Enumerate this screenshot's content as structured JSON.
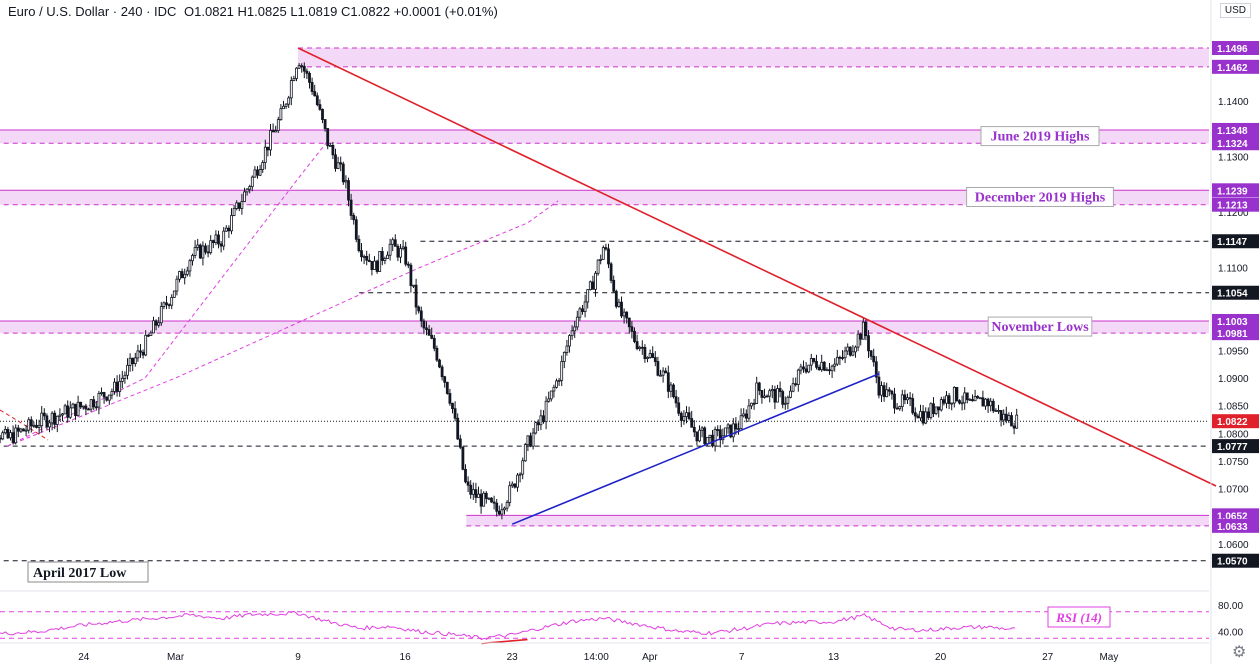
{
  "header": {
    "symbol": "Euro / U.S. Dollar",
    "interval": "240",
    "source": "IDC",
    "open": "O1.0821",
    "high": "H1.0825",
    "low": "L1.0819",
    "close": "C1.0822",
    "change": "+0.0001 (+0.01%)"
  },
  "currency_badge": "USD",
  "settings_icon": "gear-icon",
  "colors": {
    "zone_fill": "#f3d9f7",
    "zone_border": "#cc33cc",
    "resistance_line": "#e0202a",
    "support_line": "#1f22c8",
    "sma_line": "#e040e0",
    "candle": "#131722",
    "label_bg": "#9932cc",
    "rsi_line": "#e040e0"
  },
  "chart_data": [
    {
      "type": "candlestick",
      "title": "Euro / U.S. Dollar · 240 · IDC",
      "ylim": [
        1.055,
        1.152
      ],
      "x_ticks": [
        "24",
        "Mar",
        "9",
        "16",
        "23",
        "14:00",
        "Apr",
        "7",
        "13",
        "20",
        "27",
        "May"
      ],
      "y_ticks": [
        "1.1400",
        "1.1300",
        "1.1200",
        "1.1100",
        "1.0950",
        "1.0900",
        "1.0850",
        "1.0800",
        "1.0750",
        "1.0700",
        "1.0650",
        "1.0600"
      ],
      "grid": false,
      "price_labels": [
        {
          "value": 1.1496,
          "text": "1.1496",
          "style": "zone"
        },
        {
          "value": 1.1462,
          "text": "1.1462",
          "style": "zone"
        },
        {
          "value": 1.1348,
          "text": "1.1348",
          "style": "zone"
        },
        {
          "value": 1.1324,
          "text": "1.1324",
          "style": "zone"
        },
        {
          "value": 1.1239,
          "text": "1.1239",
          "style": "zone"
        },
        {
          "value": 1.1213,
          "text": "1.1213",
          "style": "zone"
        },
        {
          "value": 1.1147,
          "text": "1.1147",
          "style": "level"
        },
        {
          "value": 1.1054,
          "text": "1.1054",
          "style": "level"
        },
        {
          "value": 1.1003,
          "text": "1.1003",
          "style": "zone"
        },
        {
          "value": 1.0981,
          "text": "1.0981",
          "style": "zone"
        },
        {
          "value": 1.0822,
          "text": "1.0822",
          "style": "last"
        },
        {
          "value": 1.0777,
          "text": "1.0777",
          "style": "level"
        },
        {
          "value": 1.0652,
          "text": "1.0652",
          "style": "zone"
        },
        {
          "value": 1.0633,
          "text": "1.0633",
          "style": "zone"
        },
        {
          "value": 1.057,
          "text": "1.0570",
          "style": "level"
        }
      ],
      "zones": [
        {
          "from": 1.1462,
          "to": 1.1496,
          "x_start": "Mar 9",
          "label": ""
        },
        {
          "from": 1.1324,
          "to": 1.1348,
          "x_start": "Feb 17",
          "label": "June 2019 Highs"
        },
        {
          "from": 1.1213,
          "to": 1.1239,
          "x_start": "Feb 17",
          "label": "December 2019 Highs"
        },
        {
          "from": 1.0981,
          "to": 1.1003,
          "x_start": "Feb 17",
          "label": "November Lows"
        },
        {
          "from": 1.0633,
          "to": 1.0652,
          "x_start": "Mar 20",
          "label": ""
        }
      ],
      "levels": [
        {
          "value": 1.1147,
          "x_start": "Mar 17"
        },
        {
          "value": 1.1054,
          "x_start": "Mar 13"
        },
        {
          "value": 1.0777,
          "x_start": "Feb 17"
        },
        {
          "value": 1.057,
          "x_start": "Feb 17",
          "label": "April 2017 Low"
        }
      ],
      "trendlines": [
        {
          "name": "resistance",
          "color": "#e0202a",
          "points": [
            [
              "Mar 9",
              1.1496
            ],
            [
              "May 8",
              1.0705
            ]
          ]
        },
        {
          "name": "support",
          "color": "#1f22c8",
          "points": [
            [
              "Mar 23",
              1.0636
            ],
            [
              "Apr 16",
              1.0908
            ]
          ]
        }
      ],
      "dashed_curves": [
        {
          "name": "ma-short",
          "color": "#e040e0",
          "points": [
            [
              "Feb 19",
              1.0777
            ],
            [
              "Feb 28",
              1.09
            ],
            [
              "Mar 4",
              1.108
            ],
            [
              "Mar 9",
              1.126
            ],
            [
              "Mar 11",
              1.133
            ]
          ]
        },
        {
          "name": "ma-long",
          "color": "#e040e0",
          "points": [
            [
              "Feb 19",
              1.0777
            ],
            [
              "Mar 1",
              1.09
            ],
            [
              "Mar 9",
              1.1
            ],
            [
              "Mar 17",
              1.11
            ],
            [
              "Mar 24",
              1.118
            ],
            [
              "Mar 26",
              1.122
            ]
          ]
        }
      ],
      "close_path": [
        {
          "x": "Feb 17",
          "y": 1.083
        },
        {
          "x": "Feb 19",
          "y": 1.079
        },
        {
          "x": "Feb 21",
          "y": 1.082
        },
        {
          "x": "Feb 24",
          "y": 1.085
        },
        {
          "x": "Feb 26",
          "y": 1.088
        },
        {
          "x": "Feb 28",
          "y": 1.096
        },
        {
          "x": "Mar 2",
          "y": 1.112
        },
        {
          "x": "Mar 4",
          "y": 1.115
        },
        {
          "x": "Mar 6",
          "y": 1.126
        },
        {
          "x": "Mar 8",
          "y": 1.138
        },
        {
          "x": "Mar 9",
          "y": 1.148
        },
        {
          "x": "Mar 10",
          "y": 1.142
        },
        {
          "x": "Mar 11",
          "y": 1.132
        },
        {
          "x": "Mar 12",
          "y": 1.126
        },
        {
          "x": "Mar 13",
          "y": 1.114
        },
        {
          "x": "Mar 14",
          "y": 1.11
        },
        {
          "x": "Mar 15",
          "y": 1.114
        },
        {
          "x": "Mar 16",
          "y": 1.112
        },
        {
          "x": "Mar 17",
          "y": 1.1
        },
        {
          "x": "Mar 18",
          "y": 1.095
        },
        {
          "x": "Mar 19",
          "y": 1.086
        },
        {
          "x": "Mar 20",
          "y": 1.07
        },
        {
          "x": "Mar 21",
          "y": 1.068
        },
        {
          "x": "Mar 22",
          "y": 1.066
        },
        {
          "x": "Mar 23",
          "y": 1.07
        },
        {
          "x": "Mar 24",
          "y": 1.078
        },
        {
          "x": "Mar 25",
          "y": 1.083
        },
        {
          "x": "Mar 26",
          "y": 1.09
        },
        {
          "x": "Mar 27",
          "y": 1.1
        },
        {
          "x": "Mar 28",
          "y": 1.105
        },
        {
          "x": "Mar 29",
          "y": 1.114
        },
        {
          "x": "Mar 30",
          "y": 1.102
        },
        {
          "x": "Mar 31",
          "y": 1.097
        },
        {
          "x": "Apr 1",
          "y": 1.094
        },
        {
          "x": "Apr 2",
          "y": 1.09
        },
        {
          "x": "Apr 3",
          "y": 1.084
        },
        {
          "x": "Apr 4",
          "y": 1.08
        },
        {
          "x": "Apr 5",
          "y": 1.079
        },
        {
          "x": "Apr 6",
          "y": 1.08
        },
        {
          "x": "Apr 7",
          "y": 1.082
        },
        {
          "x": "Apr 8",
          "y": 1.088
        },
        {
          "x": "Apr 9",
          "y": 1.087
        },
        {
          "x": "Apr 10",
          "y": 1.086
        },
        {
          "x": "Apr 11",
          "y": 1.092
        },
        {
          "x": "Apr 12",
          "y": 1.093
        },
        {
          "x": "Apr 13",
          "y": 1.092
        },
        {
          "x": "Apr 14",
          "y": 1.095
        },
        {
          "x": "Apr 15",
          "y": 1.099
        },
        {
          "x": "Apr 16",
          "y": 1.088
        },
        {
          "x": "Apr 17",
          "y": 1.086
        },
        {
          "x": "Apr 18",
          "y": 1.085
        },
        {
          "x": "Apr 19",
          "y": 1.083
        },
        {
          "x": "Apr 20",
          "y": 1.086
        },
        {
          "x": "Apr 21",
          "y": 1.087
        },
        {
          "x": "Apr 22",
          "y": 1.085
        },
        {
          "x": "Apr 23",
          "y": 1.086
        },
        {
          "x": "Apr 24",
          "y": 1.083
        },
        {
          "x": "Apr 25",
          "y": 1.0822
        }
      ]
    },
    {
      "type": "line",
      "title": "RSI (14)",
      "ylim": [
        20,
        100
      ],
      "y_ticks": [
        "80.00",
        "40.00"
      ],
      "dashed_levels": [
        70,
        30
      ],
      "series": [
        {
          "name": "RSI (14)",
          "values": [
            {
              "x": "Feb 17",
              "y": 35
            },
            {
              "x": "Feb 21",
              "y": 40
            },
            {
              "x": "Feb 24",
              "y": 50
            },
            {
              "x": "Feb 26",
              "y": 55
            },
            {
              "x": "Mar 2",
              "y": 65
            },
            {
              "x": "Mar 4",
              "y": 60
            },
            {
              "x": "Mar 6",
              "y": 66
            },
            {
              "x": "Mar 9",
              "y": 68
            },
            {
              "x": "Mar 11",
              "y": 55
            },
            {
              "x": "Mar 13",
              "y": 45
            },
            {
              "x": "Mar 15",
              "y": 48
            },
            {
              "x": "Mar 17",
              "y": 40
            },
            {
              "x": "Mar 19",
              "y": 36
            },
            {
              "x": "Mar 21",
              "y": 30
            },
            {
              "x": "Mar 23",
              "y": 35
            },
            {
              "x": "Mar 25",
              "y": 46
            },
            {
              "x": "Mar 27",
              "y": 56
            },
            {
              "x": "Mar 29",
              "y": 60
            },
            {
              "x": "Mar 31",
              "y": 52
            },
            {
              "x": "Apr 3",
              "y": 40
            },
            {
              "x": "Apr 5",
              "y": 38
            },
            {
              "x": "Apr 7",
              "y": 44
            },
            {
              "x": "Apr 9",
              "y": 52
            },
            {
              "x": "Apr 11",
              "y": 54
            },
            {
              "x": "Apr 13",
              "y": 55
            },
            {
              "x": "Apr 15",
              "y": 64
            },
            {
              "x": "Apr 17",
              "y": 44
            },
            {
              "x": "Apr 19",
              "y": 42
            },
            {
              "x": "Apr 21",
              "y": 46
            },
            {
              "x": "Apr 23",
              "y": 47
            },
            {
              "x": "Apr 25",
              "y": 43
            }
          ]
        }
      ],
      "annotation_line": {
        "color": "#e0202a",
        "points": [
          [
            "Mar 21",
            22
          ],
          [
            "Mar 24",
            28
          ]
        ]
      }
    }
  ]
}
